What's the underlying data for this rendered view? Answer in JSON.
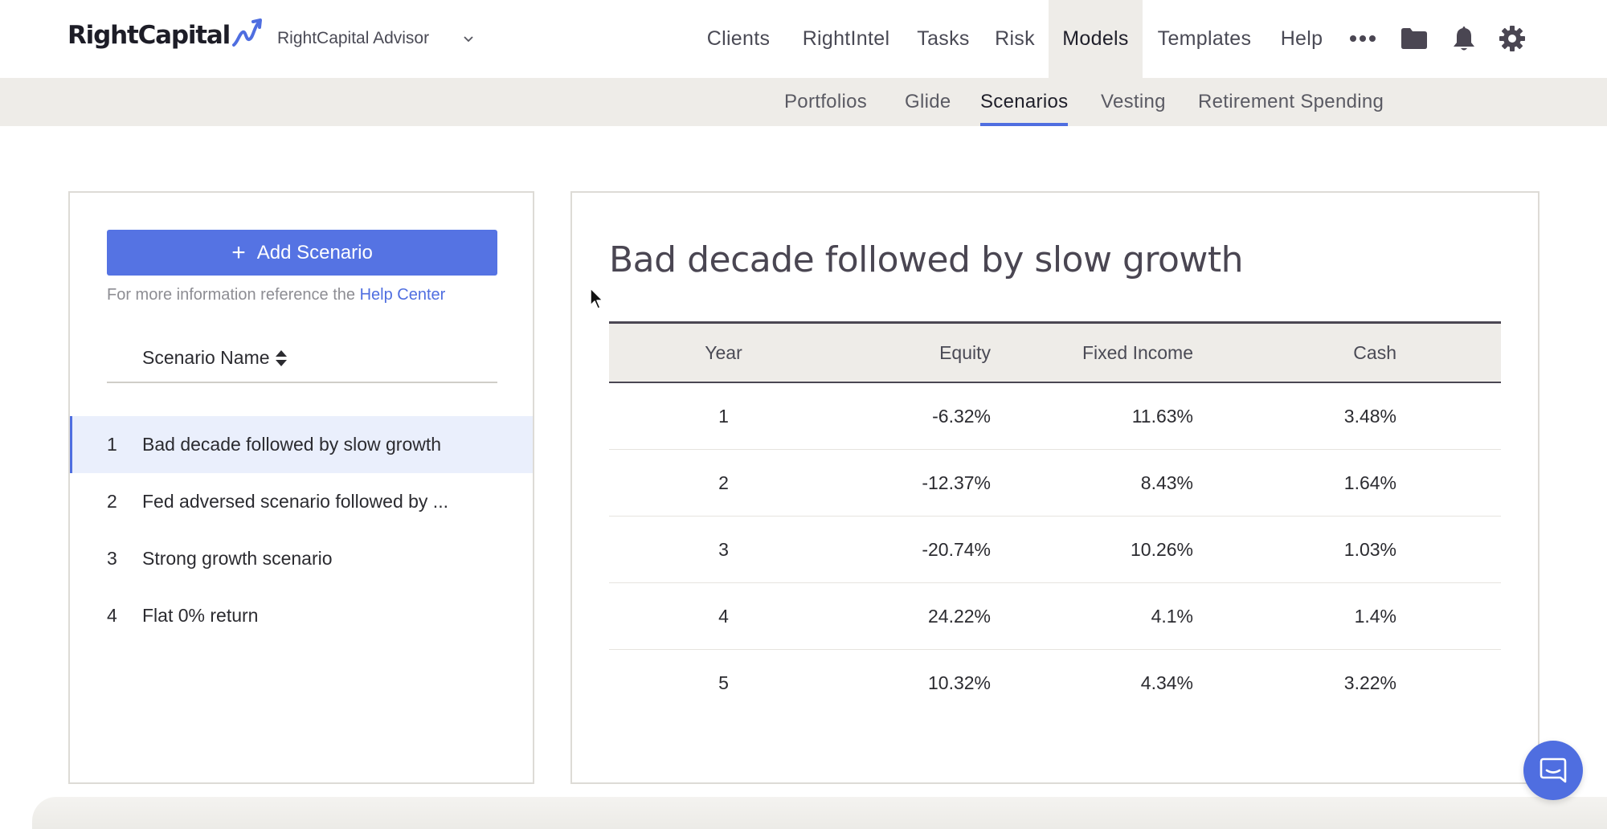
{
  "brand": {
    "logo_text": "RightCapital",
    "accent": "#5573e3"
  },
  "account": {
    "name": "RightCapital Advisor"
  },
  "nav": {
    "items": [
      {
        "label": "Clients",
        "active": false
      },
      {
        "label": "RightIntel",
        "active": false
      },
      {
        "label": "Tasks",
        "active": false
      },
      {
        "label": "Risk",
        "active": false
      },
      {
        "label": "Models",
        "active": true
      },
      {
        "label": "Templates",
        "active": false
      },
      {
        "label": "Help",
        "active": false
      }
    ],
    "icons": [
      "more-icon",
      "folder-icon",
      "bell-icon",
      "gear-icon"
    ]
  },
  "subnav": {
    "items": [
      {
        "label": "Portfolios",
        "active": false
      },
      {
        "label": "Glide",
        "active": false
      },
      {
        "label": "Scenarios",
        "active": true
      },
      {
        "label": "Vesting",
        "active": false
      },
      {
        "label": "Retirement Spending",
        "active": false
      }
    ]
  },
  "sidebar": {
    "add_button": "Add Scenario",
    "help_text": "For more information reference the",
    "help_link": "Help Center",
    "column_header": "Scenario Name",
    "scenarios": [
      {
        "num": "1",
        "name": "Bad decade followed by slow growth",
        "selected": true
      },
      {
        "num": "2",
        "name": "Fed adversed scenario followed by ...",
        "selected": false
      },
      {
        "num": "3",
        "name": "Strong growth scenario",
        "selected": false
      },
      {
        "num": "4",
        "name": "Flat 0% return",
        "selected": false
      }
    ]
  },
  "detail": {
    "title": "Bad decade followed by slow growth",
    "columns": {
      "year": "Year",
      "equity": "Equity",
      "fixed_income": "Fixed Income",
      "cash": "Cash"
    },
    "rows": [
      {
        "year": "1",
        "equity": "-6.32%",
        "fixed_income": "11.63%",
        "cash": "3.48%"
      },
      {
        "year": "2",
        "equity": "-12.37%",
        "fixed_income": "8.43%",
        "cash": "1.64%"
      },
      {
        "year": "3",
        "equity": "-20.74%",
        "fixed_income": "10.26%",
        "cash": "1.03%"
      },
      {
        "year": "4",
        "equity": "24.22%",
        "fixed_income": "4.1%",
        "cash": "1.4%"
      },
      {
        "year": "5",
        "equity": "10.32%",
        "fixed_income": "4.34%",
        "cash": "3.22%"
      }
    ]
  }
}
